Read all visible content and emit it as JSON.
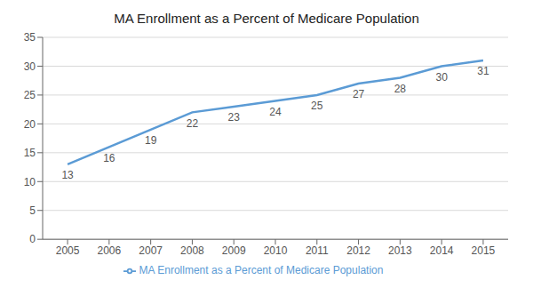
{
  "chart_data": {
    "type": "line",
    "title": "MA Enrollment as a Percent of Medicare Population",
    "x": [
      2005,
      2006,
      2007,
      2008,
      2009,
      2010,
      2011,
      2012,
      2013,
      2014,
      2015
    ],
    "series": [
      {
        "name": "MA Enrollment as a Percent of Medicare Population",
        "color": "#5b9bd5",
        "values": [
          13,
          16,
          19,
          22,
          23,
          24,
          25,
          27,
          28,
          30,
          31
        ]
      }
    ],
    "xlim": [
      2004.4,
      2015.6
    ],
    "xticks": [
      2005,
      2006,
      2007,
      2008,
      2009,
      2010,
      2011,
      2012,
      2013,
      2014,
      2015
    ],
    "ylim": [
      0,
      35
    ],
    "yticks": [
      0,
      5,
      10,
      15,
      20,
      25,
      30,
      35
    ],
    "grid": true,
    "data_labels": true,
    "legend": "bottom"
  }
}
